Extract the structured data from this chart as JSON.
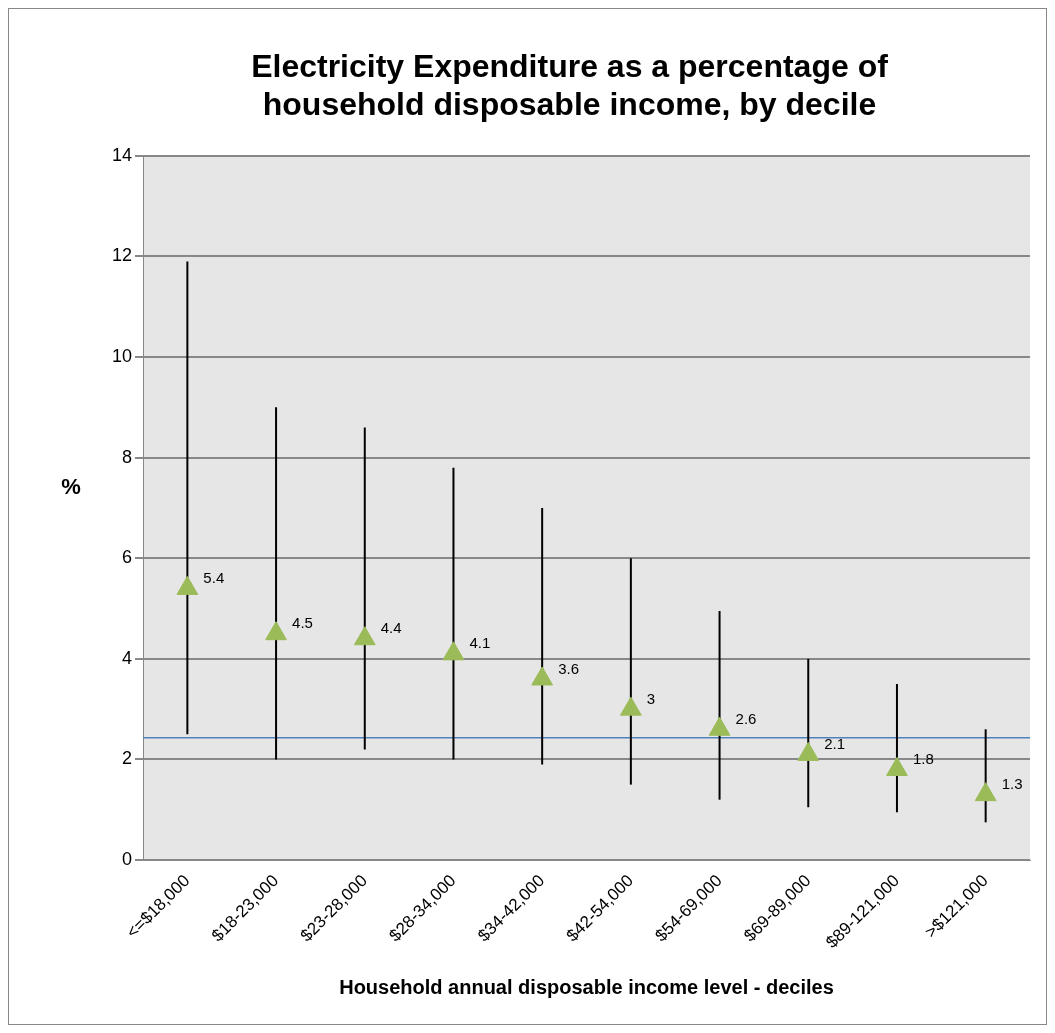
{
  "chart_data": {
    "type": "scatter",
    "title": [
      "Electricity Expenditure as a percentage of",
      "household disposable income, by decile"
    ],
    "xlabel": "Household annual disposable income level - deciles",
    "ylabel": "%",
    "categories": [
      "<=$18,000",
      "$18-23,000",
      "$23-28,000",
      "$28-34,000",
      "$34-42,000",
      "$42-54,000",
      "$54-69,000",
      "$69-89,000",
      "$89-121,000",
      ">$121,000"
    ],
    "series": [
      {
        "color": "#9bbb59",
        "values": [
          5.4,
          4.5,
          4.4,
          4.1,
          3.6,
          3,
          2.6,
          2.1,
          1.8,
          1.3
        ],
        "errors": [
          [
            2.5,
            11.9
          ],
          [
            2.0,
            9.0
          ],
          [
            2.2,
            8.6
          ],
          [
            2.0,
            7.8
          ],
          [
            1.9,
            7.0
          ],
          [
            1.5,
            6.0
          ],
          [
            1.2,
            4.95
          ],
          [
            1.05,
            4.0
          ],
          [
            0.95,
            3.5
          ],
          [
            0.75,
            2.6
          ]
        ]
      }
    ],
    "ylim": [
      0,
      14
    ],
    "yticks": [
      0,
      2,
      4,
      6,
      8,
      10,
      12,
      14
    ],
    "grid": "y",
    "marker": "triangle",
    "data_labels": true,
    "legend": false,
    "ref_lines": [
      {
        "axis": "y",
        "value": 2.43,
        "color": "#4f81bd"
      }
    ]
  }
}
